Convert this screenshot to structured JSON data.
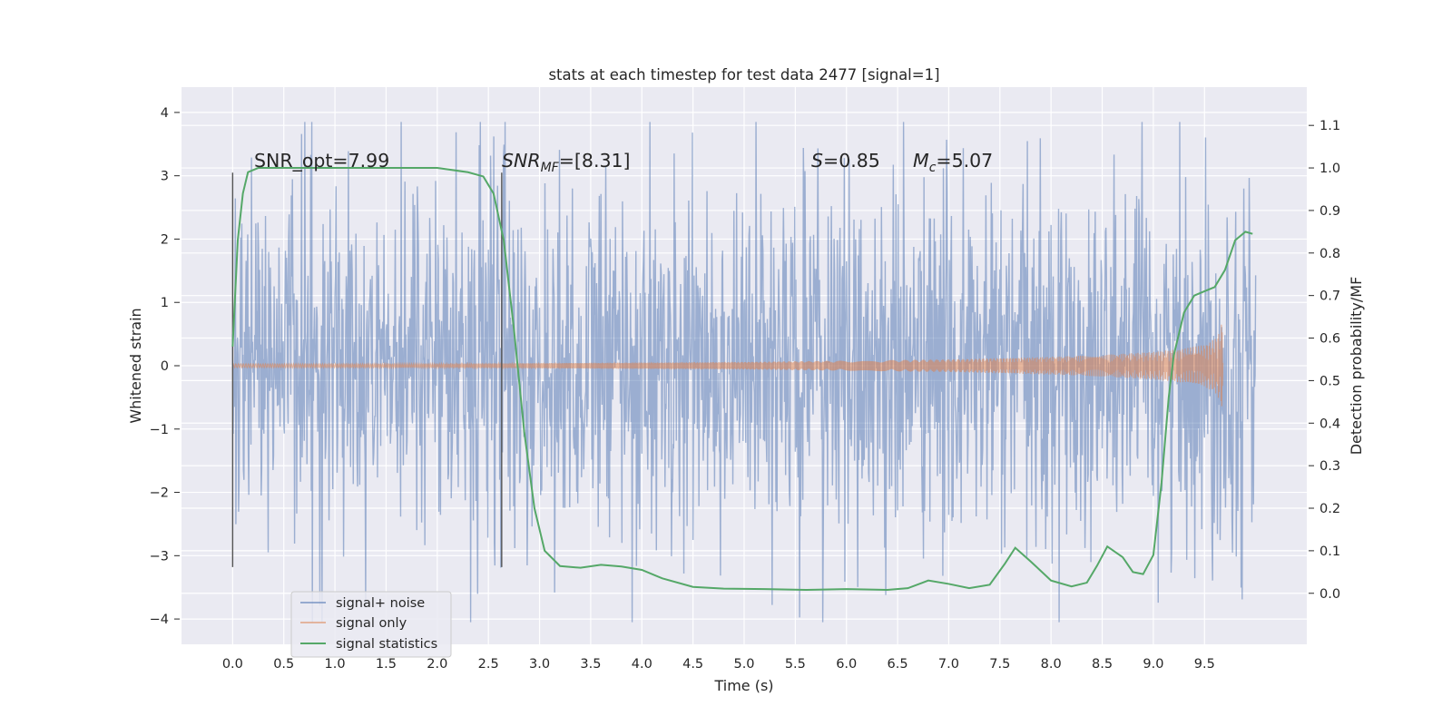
{
  "chart_data": {
    "type": "line",
    "title": "stats at each timestep for test data 2477 [signal=1]",
    "xlabel": "Time (s)",
    "ylabel": "Whitened strain",
    "ylabel_right": "Detection probability/MF",
    "xlim": [
      -0.5,
      10.5
    ],
    "ylim": [
      -4.4,
      4.4
    ],
    "ylim_right": [
      -0.12,
      1.19
    ],
    "x_ticks": [
      "0.0",
      "0.5",
      "1.0",
      "1.5",
      "2.0",
      "2.5",
      "3.0",
      "3.5",
      "4.0",
      "4.5",
      "5.0",
      "5.5",
      "6.0",
      "6.5",
      "7.0",
      "7.5",
      "8.0",
      "8.5",
      "9.0",
      "9.5"
    ],
    "y_ticks": [
      "−4",
      "−3",
      "−2",
      "−1",
      "0",
      "1",
      "2",
      "3",
      "4"
    ],
    "y_ticks_right": [
      "0.0",
      "0.1",
      "0.2",
      "0.3",
      "0.4",
      "0.5",
      "0.6",
      "0.7",
      "0.8",
      "0.9",
      "1.0",
      "1.1"
    ],
    "grid": true,
    "legend_position": "lower-left",
    "annotations": {
      "snr_opt": "SNR_opt=7.99",
      "snr_mf_main": "SNR",
      "snr_mf_sub": "MF",
      "snr_mf_value": "=[8.31]",
      "s_main": "S",
      "s_value": "=0.85",
      "mc_main": "M",
      "mc_sub": "c",
      "mc_value": "=5.07"
    },
    "vertical_markers": [
      0.0,
      2.63
    ],
    "series": [
      {
        "name": "signal+ noise",
        "color": "#4c72b0",
        "axis": "left",
        "x_range": [
          0.0,
          10.0
        ],
        "typical_amplitude": 2.0,
        "peak_range": [
          -4.05,
          3.85
        ]
      },
      {
        "name": "signal only",
        "color": "#dd8452",
        "axis": "left",
        "x": [
          0.0,
          1.0,
          2.0,
          3.0,
          4.0,
          5.0,
          6.0,
          7.0,
          7.5,
          8.0,
          8.5,
          9.0,
          9.3,
          9.5,
          9.6,
          9.65,
          9.68
        ],
        "envelope": [
          0.03,
          0.03,
          0.03,
          0.04,
          0.05,
          0.06,
          0.08,
          0.1,
          0.12,
          0.14,
          0.17,
          0.22,
          0.27,
          0.33,
          0.42,
          0.55,
          0.75
        ]
      },
      {
        "name": "signal statistics",
        "color": "#55a868",
        "axis": "right",
        "x": [
          0.0,
          0.05,
          0.1,
          0.15,
          0.25,
          0.5,
          1.0,
          1.5,
          2.0,
          2.3,
          2.45,
          2.55,
          2.65,
          2.75,
          2.85,
          2.95,
          3.05,
          3.2,
          3.4,
          3.6,
          3.8,
          4.0,
          4.2,
          4.5,
          4.8,
          5.2,
          5.6,
          6.0,
          6.4,
          6.6,
          6.8,
          7.0,
          7.2,
          7.4,
          7.55,
          7.65,
          7.8,
          8.0,
          8.2,
          8.35,
          8.45,
          8.55,
          8.7,
          8.8,
          8.9,
          9.0,
          9.08,
          9.15,
          9.2,
          9.3,
          9.4,
          9.5,
          9.6,
          9.7,
          9.8,
          9.9,
          9.97
        ],
        "y": [
          0.58,
          0.83,
          0.94,
          0.99,
          1.0,
          1.0,
          1.0,
          1.0,
          1.0,
          0.99,
          0.98,
          0.94,
          0.83,
          0.62,
          0.38,
          0.2,
          0.1,
          0.064,
          0.06,
          0.067,
          0.063,
          0.055,
          0.035,
          0.015,
          0.011,
          0.01,
          0.008,
          0.01,
          0.008,
          0.012,
          0.03,
          0.022,
          0.012,
          0.02,
          0.07,
          0.107,
          0.075,
          0.03,
          0.016,
          0.025,
          0.065,
          0.11,
          0.085,
          0.05,
          0.045,
          0.09,
          0.26,
          0.46,
          0.56,
          0.66,
          0.7,
          0.71,
          0.72,
          0.76,
          0.83,
          0.85,
          0.845
        ]
      }
    ]
  }
}
